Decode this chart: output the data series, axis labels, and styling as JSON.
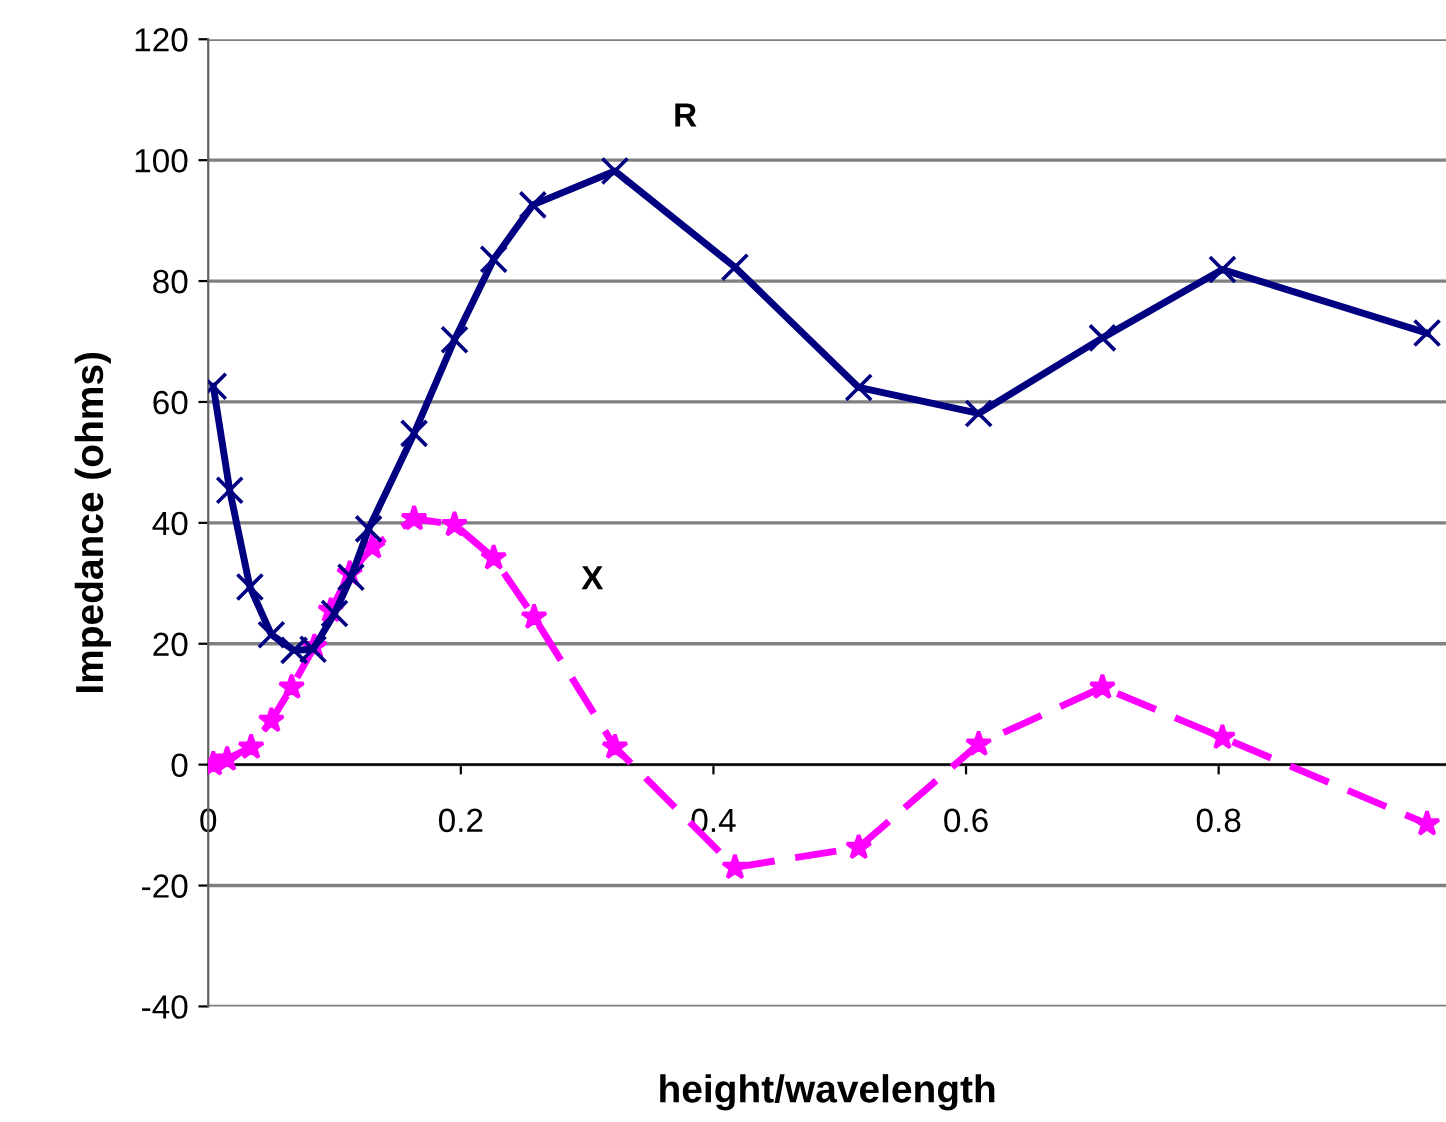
{
  "chart_data": {
    "type": "line",
    "xlabel": "height/wavelength",
    "ylabel": "Impedance (ohms)",
    "xlim": [
      0,
      0.98
    ],
    "xticks": [
      0,
      0.2,
      0.4,
      0.6,
      0.8
    ],
    "ylim": [
      -40,
      120
    ],
    "yticks": [
      -40,
      -20,
      0,
      20,
      40,
      60,
      80,
      100,
      120
    ],
    "grid": "y",
    "legend": false,
    "series": [
      {
        "name": "R",
        "color": "#000080",
        "marker": "cross",
        "line_style": "solid",
        "x": [
          0.004,
          0.017,
          0.033,
          0.05,
          0.068,
          0.083,
          0.1,
          0.113,
          0.127,
          0.163,
          0.195,
          0.226,
          0.257,
          0.322,
          0.417,
          0.515,
          0.61,
          0.708,
          0.803,
          0.965
        ],
        "values": [
          62.6,
          45.4,
          29.4,
          21.5,
          18.9,
          19.1,
          25,
          31,
          39,
          54.8,
          70.3,
          83.6,
          92.6,
          98.2,
          82.3,
          62.4,
          58.1,
          70.6,
          81.9,
          71.4
        ]
      },
      {
        "name": "X",
        "color": "#ff00ff",
        "marker": "star",
        "line_style": "dashed",
        "x": [
          0.004,
          0.015,
          0.034,
          0.05,
          0.066,
          0.084,
          0.097,
          0.112,
          0.13,
          0.163,
          0.195,
          0.226,
          0.258,
          0.322,
          0.417,
          0.515,
          0.61,
          0.708,
          0.803,
          0.965
        ],
        "values": [
          0.1,
          0.9,
          2.9,
          7.3,
          12.8,
          19.5,
          25.5,
          31.6,
          36,
          40.7,
          39.7,
          34.2,
          24.4,
          2.9,
          -17,
          -13.7,
          3.4,
          12.8,
          4.5,
          -9.8
        ]
      }
    ]
  }
}
